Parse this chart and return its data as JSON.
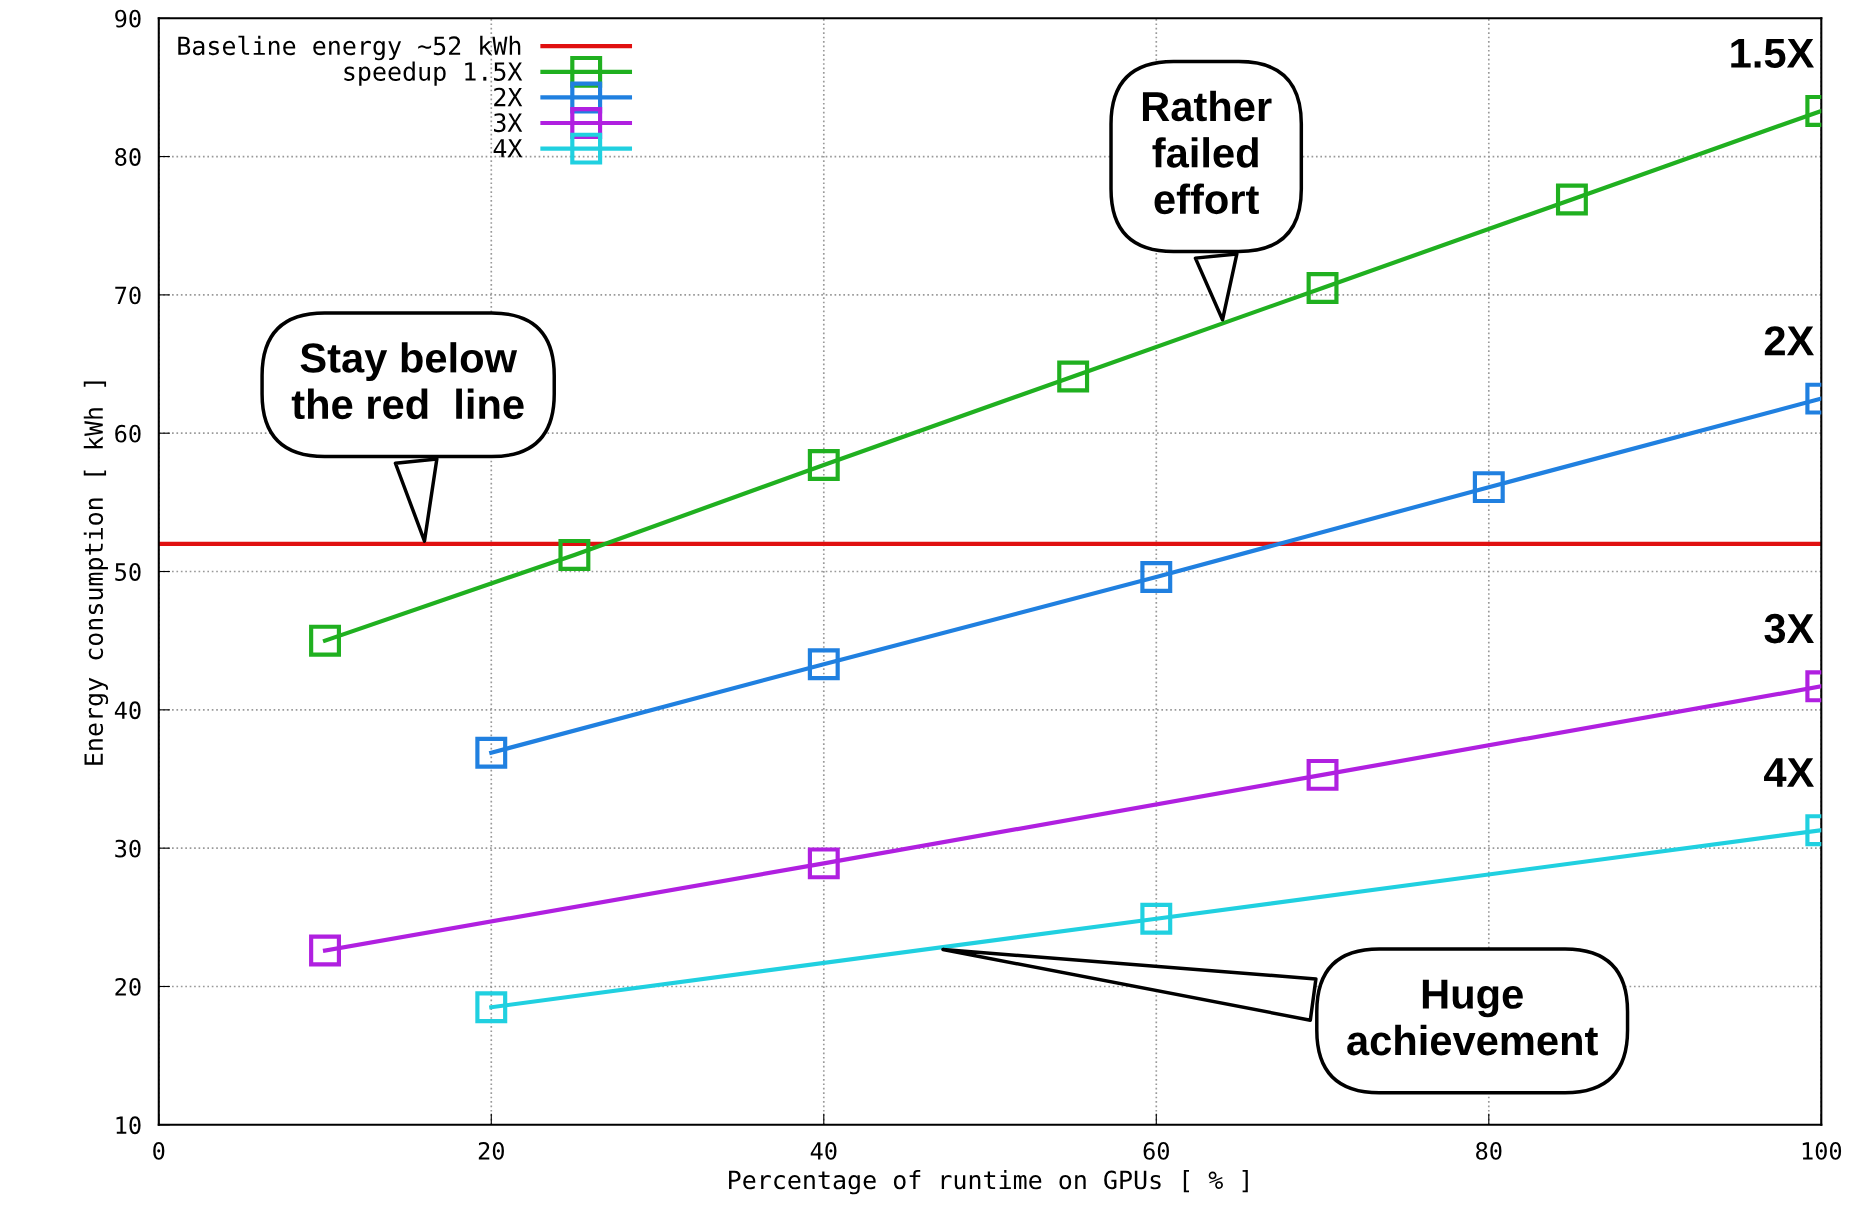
{
  "chart_data": {
    "type": "line",
    "xlabel": "Percentage of runtime on GPUs [ % ]",
    "ylabel": "Energy consumption [ kWh ]",
    "xlim": [
      0,
      100
    ],
    "ylim": [
      10,
      90
    ],
    "xticks": [
      0,
      20,
      40,
      60,
      80,
      100
    ],
    "yticks": [
      10,
      20,
      30,
      40,
      50,
      60,
      70,
      80,
      90
    ],
    "grid": true,
    "legend": "top left",
    "marker": "square",
    "line_style": "solid",
    "ref_lines": [
      {
        "axis": "y",
        "value": 52,
        "label": "Baseline energy ~52 kWh",
        "color": "#e01010"
      }
    ],
    "series": [
      {
        "name": "speedup 1.5X",
        "color": "#20b020",
        "x": [
          10,
          25,
          40,
          55,
          70,
          85,
          100
        ],
        "values": [
          45,
          51.2,
          57.7,
          64.1,
          70.5,
          76.9,
          83.3
        ]
      },
      {
        "name": "2X",
        "color": "#2080e0",
        "x": [
          20,
          40,
          60,
          80,
          100
        ],
        "values": [
          36.9,
          43.3,
          49.6,
          56.1,
          62.5
        ]
      },
      {
        "name": "3X",
        "color": "#b020e0",
        "x": [
          10,
          40,
          70,
          100
        ],
        "values": [
          22.6,
          28.9,
          35.3,
          41.7
        ]
      },
      {
        "name": "4X",
        "color": "#20d0e0",
        "x": [
          20,
          60,
          100
        ],
        "values": [
          18.5,
          24.9,
          31.3
        ]
      }
    ],
    "annotations": [
      {
        "text": "1.5X",
        "x": 100,
        "y": 83.3
      },
      {
        "text": "2X",
        "x": 100,
        "y": 62.5
      },
      {
        "text": "3X",
        "x": 100,
        "y": 41.7
      },
      {
        "text": "4X",
        "x": 100,
        "y": 31.3
      },
      {
        "text": "Stay below\nthe red  line",
        "x": 16,
        "y": 52
      },
      {
        "text": "Rather\nfailed\neffort",
        "x": 64,
        "y": 68
      },
      {
        "text": "Huge\nachievement",
        "x": 47,
        "y": 22.7
      }
    ]
  }
}
